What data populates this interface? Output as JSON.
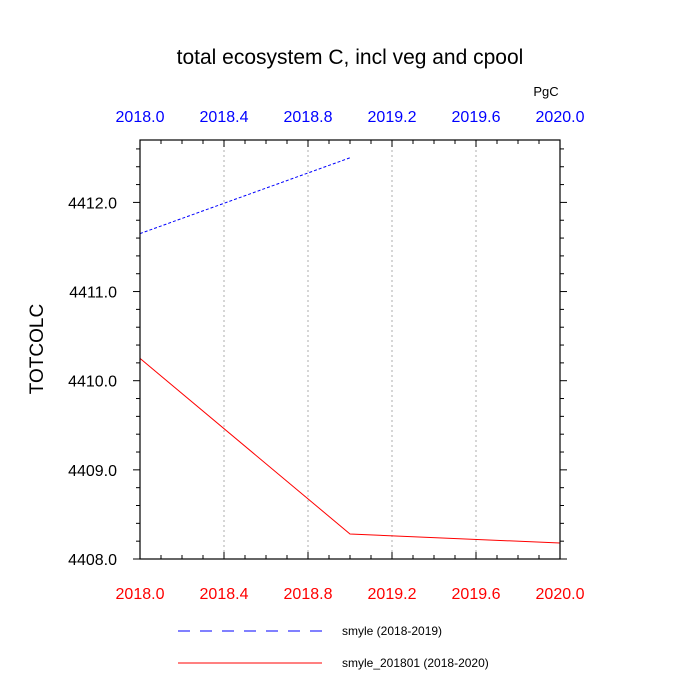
{
  "chart_data": {
    "type": "line",
    "title": "total ecosystem C, incl veg and cpool",
    "units": "PgC",
    "ylabel": "TOTCOLC",
    "xlim": [
      2018.0,
      2020.0
    ],
    "ylim": [
      4408.0,
      4412.7
    ],
    "x_ticks": [
      "2018.0",
      "2018.4",
      "2018.8",
      "2019.2",
      "2019.6",
      "2020.0"
    ],
    "x_tick_values": [
      2018.0,
      2018.4,
      2018.8,
      2019.2,
      2019.6,
      2020.0
    ],
    "y_ticks": [
      "4408.0",
      "4409.0",
      "4410.0",
      "4411.0",
      "4412.0"
    ],
    "y_tick_values": [
      4408.0,
      4409.0,
      4410.0,
      4411.0,
      4412.0
    ],
    "top_axis_color": "#0000ff",
    "bottom_axis_color": "#ff0000",
    "grid": true,
    "series": [
      {
        "name": "smyle (2018-2019)",
        "color": "#0000ff",
        "dash": "dashed",
        "x": [
          2018.0,
          2019.0
        ],
        "y": [
          4411.65,
          4412.5
        ]
      },
      {
        "name": "smyle_201801 (2018-2020)",
        "color": "#ff0000",
        "dash": "solid",
        "x": [
          2018.0,
          2019.0,
          2020.0
        ],
        "y": [
          4410.25,
          4408.28,
          4408.18
        ]
      }
    ]
  }
}
